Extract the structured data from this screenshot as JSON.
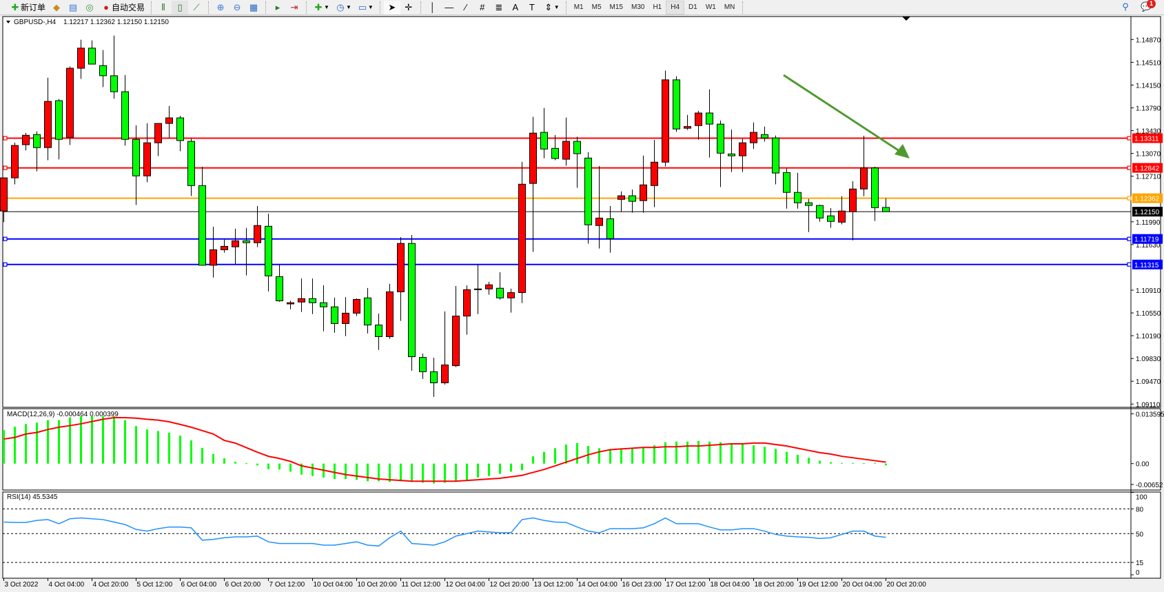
{
  "toolbar": {
    "new_order_label": "新订单",
    "auto_trading_label": "自动交易",
    "timeframes": [
      "M1",
      "M5",
      "M15",
      "M30",
      "H1",
      "H4",
      "D1",
      "W1",
      "MN"
    ],
    "active_timeframe": "H4",
    "notification_count": "1"
  },
  "chart_header": {
    "symbol": "GBPUSD-,H4",
    "ohlc": "1.12217 1.12362 1.12150 1.12150"
  },
  "colors": {
    "bull": "#ff0000",
    "bear": "#00ff00",
    "resistance": "#ff0000",
    "pivot": "#ffa500",
    "bid": "#000000",
    "support": "#0000ff",
    "arrow": "#4f9a2e",
    "macd_hist": "#00ff00",
    "macd_signal": "#ff0000",
    "rsi": "#1e90ff"
  },
  "chart_data": [
    {
      "type": "candlestick",
      "title": "GBPUSD-,H4",
      "ylim": [
        1.0911,
        1.1523
      ],
      "y_ticks": [
        "1.14870",
        "1.14510",
        "1.14150",
        "1.13790",
        "1.13430",
        "1.13070",
        "1.12710",
        "1.11990",
        "1.11630",
        "1.10910",
        "1.10550",
        "1.10190",
        "1.09830",
        "1.09470",
        "1.09110"
      ],
      "x_ticks": [
        {
          "i": 1,
          "label": "3 Oct 2022"
        },
        {
          "i": 5,
          "label": "4 Oct 04:00"
        },
        {
          "i": 9,
          "label": "4 Oct 20:00"
        },
        {
          "i": 13,
          "label": "5 Oct 12:00"
        },
        {
          "i": 17,
          "label": "6 Oct 04:00"
        },
        {
          "i": 21,
          "label": "6 Oct 20:00"
        },
        {
          "i": 25,
          "label": "7 Oct 12:00"
        },
        {
          "i": 29,
          "label": "10 Oct 04:00"
        },
        {
          "i": 33,
          "label": "10 Oct 20:00"
        },
        {
          "i": 37,
          "label": "11 Oct 12:00"
        },
        {
          "i": 41,
          "label": "12 Oct 04:00"
        },
        {
          "i": 45,
          "label": "12 Oct 20:00"
        },
        {
          "i": 49,
          "label": "13 Oct 12:00"
        },
        {
          "i": 53,
          "label": "14 Oct 04:00"
        },
        {
          "i": 57,
          "label": "16 Oct 23:00"
        },
        {
          "i": 61,
          "label": "17 Oct 12:00"
        },
        {
          "i": 65,
          "label": "18 Oct 04:00"
        },
        {
          "i": 69,
          "label": "18 Oct 20:00"
        },
        {
          "i": 73,
          "label": "19 Oct 12:00"
        },
        {
          "i": 77,
          "label": "20 Oct 04:00"
        },
        {
          "i": 81,
          "label": "20 Oct 20:00"
        }
      ],
      "hlines": [
        {
          "price": "1.13311",
          "role": "resistance"
        },
        {
          "price": "1.12842",
          "role": "resistance"
        },
        {
          "price": "1.12362",
          "role": "pivot"
        },
        {
          "price": "1.12150",
          "role": "bid"
        },
        {
          "price": "1.11719",
          "role": "support"
        },
        {
          "price": "1.11315",
          "role": "support"
        }
      ],
      "ohlc": [
        [
          1.1216,
          1.12684,
          1.11984,
          1.12684
        ],
        [
          1.12684,
          1.13242,
          1.12581,
          1.13196
        ],
        [
          1.13208,
          1.13395,
          1.13116,
          1.13357
        ],
        [
          1.13368,
          1.13418,
          1.12787,
          1.13162
        ],
        [
          1.13162,
          1.14267,
          1.12963,
          1.13892
        ],
        [
          1.13904,
          1.13931,
          1.12975,
          1.13292
        ],
        [
          1.13323,
          1.14443,
          1.13204,
          1.14416
        ],
        [
          1.14416,
          1.14867,
          1.14248,
          1.14734
        ],
        [
          1.14734,
          1.14856,
          1.14481,
          1.14481
        ],
        [
          1.14458,
          1.14703,
          1.14118,
          1.14298
        ],
        [
          1.14298,
          1.14932,
          1.13934,
          1.14045
        ],
        [
          1.14045,
          1.14309,
          1.13193,
          1.13292
        ],
        [
          1.13292,
          1.13514,
          1.12256,
          1.12715
        ],
        [
          1.12715,
          1.13548,
          1.12615,
          1.13238
        ],
        [
          1.13238,
          1.13544,
          1.13028,
          1.13544
        ],
        [
          1.13544,
          1.1382,
          1.13315,
          1.13632
        ],
        [
          1.13632,
          1.13663,
          1.13105,
          1.13273
        ],
        [
          1.13261,
          1.13307,
          1.12397,
          1.12562
        ],
        [
          1.12562,
          1.1286,
          1.11303,
          1.11303
        ],
        [
          1.11303,
          1.11911,
          1.11108,
          1.11548
        ],
        [
          1.11548,
          1.11709,
          1.11502,
          1.11602
        ],
        [
          1.11594,
          1.11881,
          1.11319,
          1.1169
        ],
        [
          1.1169,
          1.11892,
          1.11143,
          1.11659
        ],
        [
          1.11659,
          1.1224,
          1.1159,
          1.11931
        ],
        [
          1.11919,
          1.12118,
          1.1089,
          1.11135
        ],
        [
          1.11124,
          1.11307,
          1.10726,
          1.10741
        ],
        [
          1.10692,
          1.10741,
          1.10607,
          1.10711
        ],
        [
          1.10722,
          1.11093,
          1.10565,
          1.10776
        ],
        [
          1.10776,
          1.11093,
          1.10531,
          1.10711
        ],
        [
          1.10711,
          1.10986,
          1.10259,
          1.10646
        ],
        [
          1.10646,
          1.10791,
          1.10237,
          1.10382
        ],
        [
          1.10382,
          1.10799,
          1.10183,
          1.10546
        ],
        [
          1.10546,
          1.10779,
          1.105,
          1.10764
        ],
        [
          1.10787,
          1.10944,
          1.10225,
          1.10359
        ],
        [
          1.10359,
          1.10539,
          1.09965,
          1.10175
        ],
        [
          1.10175,
          1.11009,
          1.10141,
          1.10883
        ],
        [
          1.10883,
          1.11747,
          1.10424,
          1.11648
        ],
        [
          1.11648,
          1.11781,
          1.09636,
          1.09858
        ],
        [
          1.09847,
          1.09908,
          1.09506,
          1.09621
        ],
        [
          1.09621,
          1.09843,
          1.09223,
          1.09445
        ],
        [
          1.09445,
          1.10573,
          1.09418,
          1.09728
        ],
        [
          1.09716,
          1.10975,
          1.09694,
          1.105
        ],
        [
          1.105,
          1.10986,
          1.10206,
          1.10917
        ],
        [
          1.10917,
          1.11315,
          1.10531,
          1.10929
        ],
        [
          1.10929,
          1.1104,
          1.10837,
          1.10994
        ],
        [
          1.1094,
          1.11193,
          1.1076,
          1.10787
        ],
        [
          1.10787,
          1.10933,
          1.10554,
          1.10871
        ],
        [
          1.10871,
          1.12936,
          1.10707,
          1.12584
        ],
        [
          1.12596,
          1.13648,
          1.11514,
          1.13391
        ],
        [
          1.13403,
          1.13789,
          1.12994,
          1.13139
        ],
        [
          1.1315,
          1.13361,
          1.12963,
          1.1299
        ],
        [
          1.12978,
          1.13636,
          1.12875,
          1.13261
        ],
        [
          1.13261,
          1.13334,
          1.12527,
          1.13066
        ],
        [
          1.12997,
          1.13089,
          1.11644,
          1.11942
        ],
        [
          1.11931,
          1.12871,
          1.11567,
          1.12049
        ],
        [
          1.12038,
          1.1224,
          1.11502,
          1.11724
        ],
        [
          1.12344,
          1.1247,
          1.12149,
          1.12401
        ],
        [
          1.12401,
          1.125,
          1.12133,
          1.12313
        ],
        [
          1.12324,
          1.13036,
          1.12133,
          1.12573
        ],
        [
          1.12562,
          1.13284,
          1.12221,
          1.12932
        ],
        [
          1.12932,
          1.14378,
          1.12864,
          1.14233
        ],
        [
          1.14233,
          1.1429,
          1.1341,
          1.13456
        ],
        [
          1.13468,
          1.13678,
          1.13441,
          1.13495
        ],
        [
          1.1351,
          1.13743,
          1.13288,
          1.13709
        ],
        [
          1.13709,
          1.14083,
          1.13005,
          1.13533
        ],
        [
          1.13533,
          1.1359,
          1.12539,
          1.13074
        ],
        [
          1.13062,
          1.13449,
          1.12776,
          1.13032
        ],
        [
          1.13032,
          1.133,
          1.12776,
          1.13238
        ],
        [
          1.13238,
          1.1356,
          1.13139,
          1.13403
        ],
        [
          1.13368,
          1.13495,
          1.13257,
          1.13315
        ],
        [
          1.13315,
          1.13353,
          1.12581,
          1.1276
        ],
        [
          1.12768,
          1.12833,
          1.12198,
          1.12454
        ],
        [
          1.12454,
          1.12764,
          1.12198,
          1.1229
        ],
        [
          1.1229,
          1.12351,
          1.11827,
          1.12248
        ],
        [
          1.12248,
          1.12259,
          1.11992,
          1.12049
        ],
        [
          1.12084,
          1.12206,
          1.11896,
          1.11996
        ],
        [
          1.11984,
          1.12393,
          1.1195,
          1.1216
        ],
        [
          1.12149,
          1.1263,
          1.11697,
          1.12508
        ],
        [
          1.12508,
          1.13349,
          1.12393,
          1.12841
        ],
        [
          1.12841,
          1.1286,
          1.12003,
          1.12213
        ],
        [
          1.12217,
          1.12362,
          1.1215,
          1.1215
        ]
      ]
    },
    {
      "type": "bar+line",
      "title": "MACD(12,26,9) -0.000464 0.000399",
      "ylim": [
        -0.00652,
        0.013595
      ],
      "y_ticks": [
        "0.013595",
        "0.00",
        "-0.00652"
      ],
      "histogram": [
        0.00912,
        0.01006,
        0.0108,
        0.01117,
        0.01186,
        0.01186,
        0.0126,
        0.01291,
        0.0129,
        0.0129,
        0.0129,
        0.01186,
        0.01024,
        0.00931,
        0.00888,
        0.00838,
        0.00764,
        0.00633,
        0.00428,
        0.00261,
        0.00143,
        0.0005,
        0.0001,
        -0.0005,
        -0.0015,
        -0.0016,
        -0.0022,
        -0.003,
        -0.0034,
        -0.0038,
        -0.0042,
        -0.0042,
        -0.0044,
        -0.0048,
        -0.0048,
        -0.005,
        -0.0048,
        -0.005,
        -0.0052,
        -0.0054,
        -0.0052,
        -0.0048,
        -0.0044,
        -0.0038,
        -0.0034,
        -0.0028,
        -0.0022,
        -0.0018,
        0.002,
        0.0032,
        0.0042,
        0.0052,
        0.0056,
        0.0048,
        0.0042,
        0.004,
        0.004,
        0.0042,
        0.0045,
        0.005,
        0.0058,
        0.006,
        0.006,
        0.0062,
        0.006,
        0.0058,
        0.0056,
        0.0054,
        0.005,
        0.0046,
        0.004,
        0.0032,
        0.0024,
        0.0016,
        0.0008,
        0.0004,
        0.0002,
        0.0002,
        0.0001,
        0.0002,
        -0.000464
      ],
      "signal": [
        0.0067,
        0.00714,
        0.00807,
        0.0085,
        0.00931,
        0.00993,
        0.01037,
        0.01086,
        0.01148,
        0.0121,
        0.01254,
        0.01254,
        0.01241,
        0.0121,
        0.01186,
        0.01142,
        0.01068,
        0.00993,
        0.009,
        0.00807,
        0.00633,
        0.00559,
        0.00435,
        0.0031,
        0.00199,
        0.0014,
        0.0006,
        -0.0006,
        -0.0012,
        -0.0018,
        -0.0024,
        -0.003,
        -0.0034,
        -0.0038,
        -0.0042,
        -0.0044,
        -0.0046,
        -0.0048,
        -0.0048,
        -0.0048,
        -0.0048,
        -0.0048,
        -0.0046,
        -0.0044,
        -0.0042,
        -0.004,
        -0.0036,
        -0.0032,
        -0.0024,
        -0.0016,
        -0.0006,
        0.0004,
        0.0014,
        0.0024,
        0.0032,
        0.0038,
        0.004,
        0.0042,
        0.0044,
        0.0044,
        0.0046,
        0.0046,
        0.0048,
        0.0048,
        0.005,
        0.0052,
        0.0054,
        0.0054,
        0.0056,
        0.0056,
        0.0052,
        0.0048,
        0.0042,
        0.0036,
        0.003,
        0.0026,
        0.002,
        0.0016,
        0.0012,
        0.0008,
        0.000399
      ]
    },
    {
      "type": "line",
      "title": "RSI(14) 45.5345",
      "ylim": [
        0,
        100
      ],
      "y_ticks": [
        "100",
        "80",
        "50",
        "15",
        "0"
      ],
      "levels": [
        80,
        50,
        15
      ],
      "values": [
        64,
        63.5,
        63.5,
        66,
        67,
        62,
        68,
        69,
        68,
        67,
        64,
        61,
        55,
        53,
        56,
        58,
        58,
        57,
        42,
        43,
        45,
        46,
        46,
        47,
        40,
        38,
        38,
        38,
        38,
        36,
        36,
        38,
        40,
        36,
        35,
        45,
        53,
        38,
        37,
        36,
        40,
        47,
        50,
        53,
        52,
        51,
        51,
        67,
        69,
        66,
        64,
        63.5,
        58,
        53,
        51,
        56,
        56,
        56,
        57,
        62,
        69,
        62,
        62,
        62,
        58,
        54.5,
        54.5,
        56,
        56,
        53,
        49,
        47,
        46,
        45.5,
        44,
        45,
        49,
        53,
        53,
        47,
        45.53
      ]
    }
  ]
}
